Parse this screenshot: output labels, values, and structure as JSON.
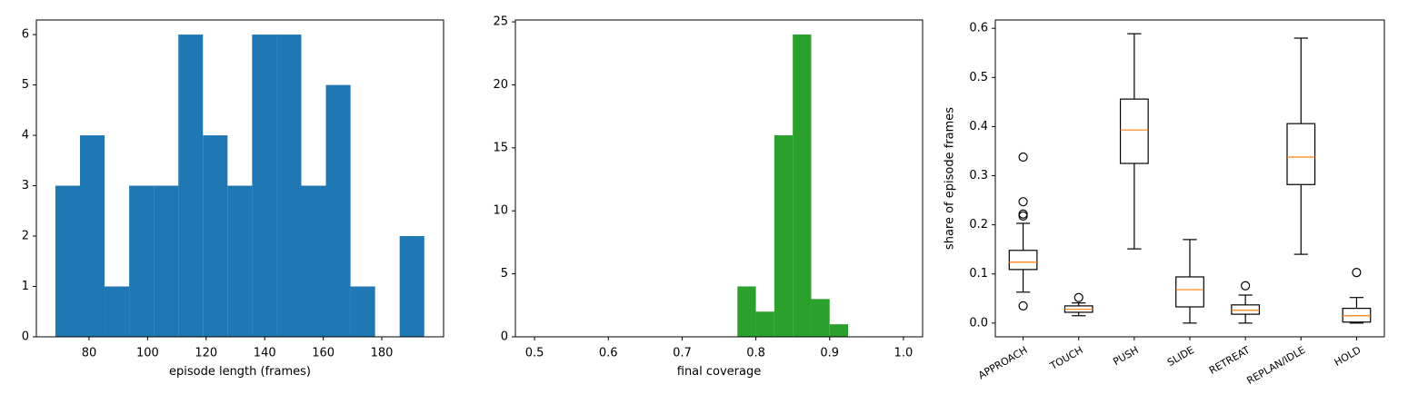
{
  "chart_data": [
    {
      "type": "histogram",
      "xlabel": "episode length (frames)",
      "color": "#1f77b4",
      "bins": [
        68.5,
        76.9,
        85.3,
        93.7,
        102.1,
        110.5,
        118.9,
        127.3,
        135.7,
        144.1,
        152.5,
        160.9,
        169.3,
        177.7,
        186.1,
        194.5
      ],
      "values": [
        3,
        4,
        1,
        3,
        3,
        6,
        4,
        3,
        6,
        6,
        3,
        5,
        1,
        0,
        2
      ],
      "xlim": [
        62,
        201.1
      ],
      "xticks": [
        80,
        100,
        120,
        140,
        160,
        180
      ],
      "ylim": [
        0,
        6.29
      ],
      "yticks": [
        0,
        1,
        2,
        3,
        4,
        5,
        6
      ]
    },
    {
      "type": "histogram",
      "xlabel": "final coverage",
      "color": "#2ca02c",
      "bins": [
        0.775,
        0.8,
        0.825,
        0.85,
        0.875,
        0.9,
        0.925
      ],
      "values": [
        4,
        2,
        16,
        24,
        3,
        1
      ],
      "xlim": [
        0.474,
        1.026
      ],
      "xticks": [
        0.5,
        0.6,
        0.7,
        0.8,
        0.9,
        {
          "value": 1,
          "label": "1.0"
        }
      ],
      "ylim": [
        0,
        25.15
      ],
      "yticks": [
        0,
        5,
        10,
        15,
        20,
        25
      ]
    },
    {
      "type": "box",
      "ylabel": "share of episode frames",
      "color": "#000000",
      "median_color": "#ff7f0e",
      "categories": [
        "APPROACH",
        "TOUCH",
        "PUSH",
        "SLIDE",
        "RETREAT",
        "REPLAN/IDLE",
        "HOLD"
      ],
      "boxes": [
        {
          "whislo": 0.063,
          "q1": 0.109,
          "med": 0.124,
          "q3": 0.148,
          "whishi": 0.203,
          "fliers": [
            0.338,
            0.247,
            0.222,
            0.218,
            0.035
          ]
        },
        {
          "whislo": 0.015,
          "q1": 0.022,
          "med": 0.028,
          "q3": 0.035,
          "whishi": 0.041,
          "fliers": [
            0.052
          ]
        },
        {
          "whislo": 0.151,
          "q1": 0.325,
          "med": 0.393,
          "q3": 0.456,
          "whishi": 0.589,
          "fliers": []
        },
        {
          "whislo": 0.0,
          "q1": 0.033,
          "med": 0.068,
          "q3": 0.094,
          "whishi": 0.17,
          "fliers": []
        },
        {
          "whislo": 0.0,
          "q1": 0.018,
          "med": 0.026,
          "q3": 0.037,
          "whishi": 0.057,
          "fliers": [
            0.076
          ]
        },
        {
          "whislo": 0.14,
          "q1": 0.282,
          "med": 0.338,
          "q3": 0.406,
          "whishi": 0.58,
          "fliers": []
        },
        {
          "whislo": 0.0,
          "q1": 0.002,
          "med": 0.015,
          "q3": 0.03,
          "whishi": 0.052,
          "fliers": [
            0.103
          ]
        }
      ],
      "ylim": [
        -0.028,
        0.617
      ],
      "yticks": [
        {
          "value": 0,
          "label": "0.0"
        },
        0.1,
        0.2,
        0.3,
        0.4,
        0.5,
        0.6
      ]
    }
  ]
}
